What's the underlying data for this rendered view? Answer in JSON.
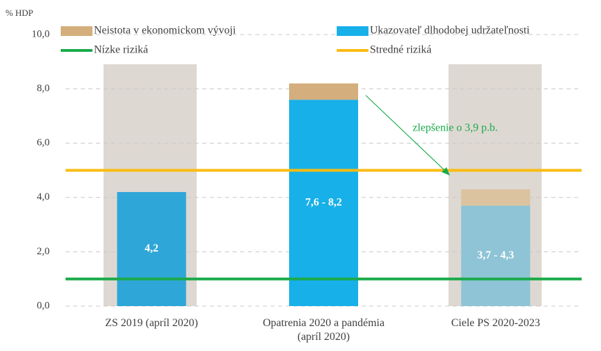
{
  "chart_data": {
    "type": "stacked_bar",
    "y_label": "% HDP",
    "categories": [
      "ZS 2019 (apríl 2020)",
      "Opatrenia 2020 a pandémia (apríl 2020)",
      "Ciele PS 2020-2023"
    ],
    "series": [
      {
        "name": "Ukazovateľ dlhodobej udržateľnosti",
        "color": "#17b0e8",
        "colors": [
          "#2fa6d8",
          "#17b0e8",
          "#8ec4d6"
        ],
        "values": [
          4.2,
          7.6,
          3.7
        ],
        "value_labels": [
          "4,2",
          "7,6 - 8,2",
          "3,7 - 4,3"
        ]
      },
      {
        "name": "Neistota v ekonomickom vývoji",
        "color": "#d4ae7c",
        "colors": [
          "#d4ae7c",
          "#d4ae7c",
          "#dcc3a0"
        ],
        "values": [
          0,
          0.6,
          0.6
        ]
      }
    ],
    "reference_lines": [
      {
        "name": "Nízke riziká",
        "value": 1,
        "color": "#1aaa4a"
      },
      {
        "name": "Stredné riziká",
        "value": 5,
        "color": "#fbbb12"
      }
    ],
    "annotation": "zlepšenie o 3,9 p.b.",
    "ylim": [
      0,
      10
    ],
    "yticks": [
      {
        "value": 0,
        "label": "0,0"
      },
      {
        "value": 2,
        "label": "2,0"
      },
      {
        "value": 4,
        "label": "4,0"
      },
      {
        "value": 6,
        "label": "6,0"
      },
      {
        "value": 8,
        "label": "8,0"
      },
      {
        "value": 10,
        "label": "10,0"
      }
    ],
    "grid": true
  }
}
